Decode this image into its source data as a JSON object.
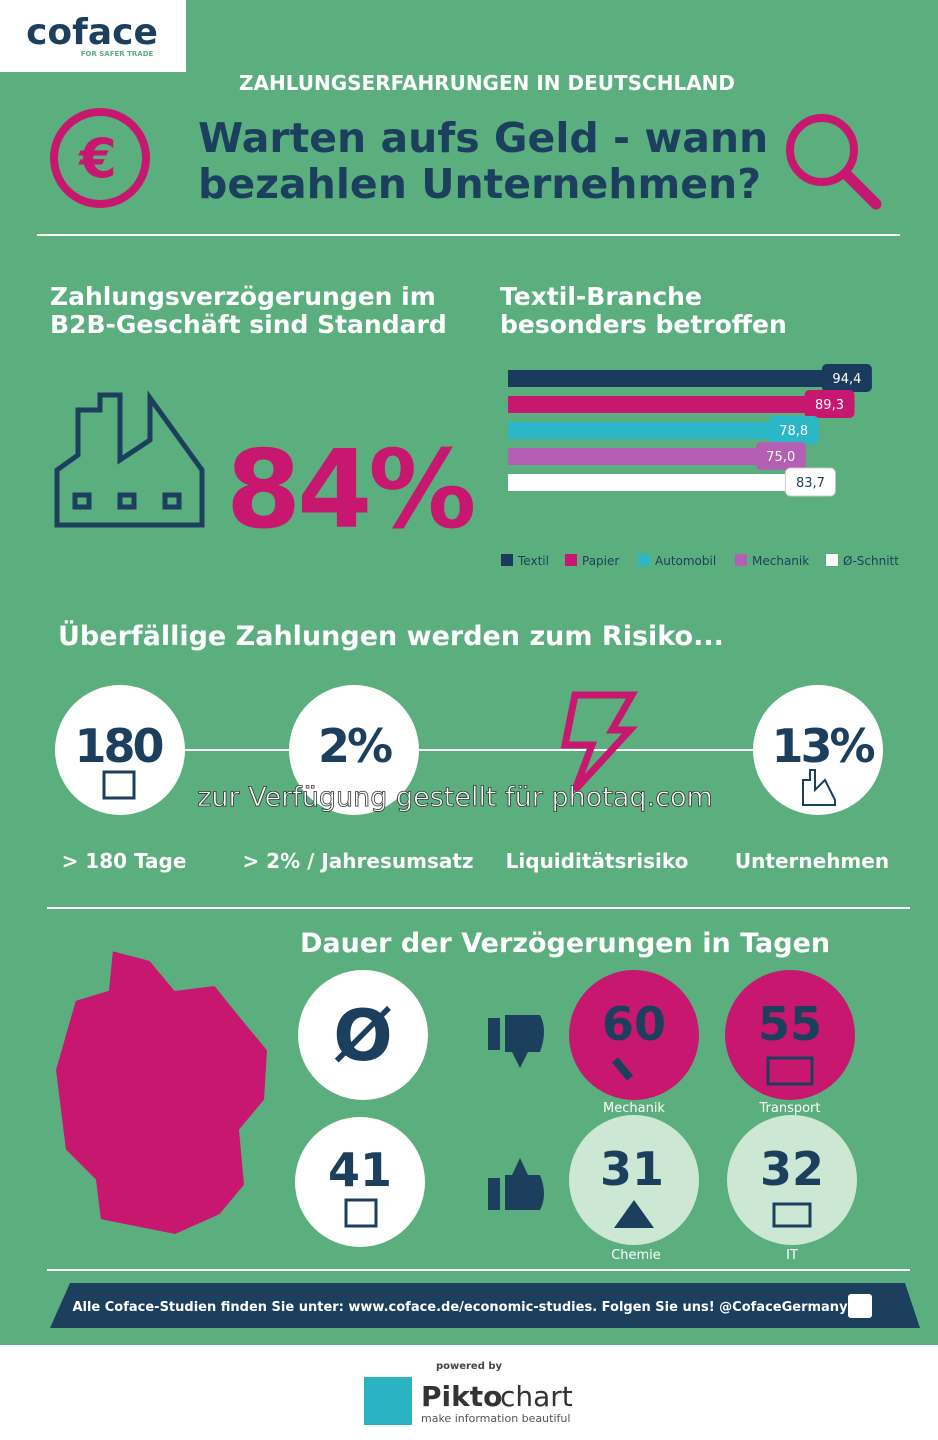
{
  "logo": {
    "name": "coface",
    "tagline": "FOR SAFER TRADE"
  },
  "header": {
    "kicker": "ZAHLUNGSERFAHRUNGEN IN DEUTSCHLAND",
    "title_lines": [
      "Warten aufs Geld - wann",
      "bezahlen Unternehmen?"
    ]
  },
  "left": {
    "heading_lines": [
      "Zahlungsverzögerungen im",
      "B2B-Geschäft sind Standard"
    ],
    "stat": "84%"
  },
  "right": {
    "heading_lines": [
      "Textil-Branche",
      "besonders betroffen"
    ]
  },
  "chart_data": {
    "type": "bar",
    "orientation": "horizontal",
    "categories": [
      "Textil",
      "Papier",
      "Automobil",
      "Mechanik",
      "Ø-Schnitt"
    ],
    "values": [
      94.4,
      89.3,
      78.8,
      75.0,
      83.7
    ],
    "value_labels": [
      "94,4",
      "89,3",
      "78,8",
      "75,0",
      "83,7"
    ],
    "colors": [
      "#1b3b5e",
      "#c8176f",
      "#2cb7c6",
      "#b35fb2",
      "#ffffff"
    ],
    "xlim": [
      0,
      100
    ],
    "legend": "bottom"
  },
  "risk": {
    "heading": "Überfällige Zahlungen werden zum Risiko...",
    "items": [
      {
        "value": "180",
        "label": "> 180 Tage"
      },
      {
        "value": "2%",
        "label": "> 2% / Jahresumsatz"
      },
      {
        "label": "Liquiditätsrisiko"
      },
      {
        "value": "13%",
        "label": "Unternehmen"
      }
    ]
  },
  "duration": {
    "heading": "Dauer der Verzögerungen in Tagen",
    "average_symbol": "Ø",
    "average": "41",
    "worst": [
      {
        "value": "60",
        "label": "Mechanik"
      },
      {
        "value": "55",
        "label": "Transport"
      }
    ],
    "best": [
      {
        "value": "31",
        "label": "Chemie"
      },
      {
        "value": "32",
        "label": "IT"
      }
    ]
  },
  "banner": "Alle Coface-Studien finden Sie unter: www.coface.de/economic-studies. Folgen Sie uns! @CofaceGermany",
  "footer": {
    "powered": "powered by",
    "brand_a": "Pikto",
    "brand_b": "chart",
    "tagline": "make information beautiful"
  },
  "watermark": "zur Verfügung gestellt für photaq.com"
}
